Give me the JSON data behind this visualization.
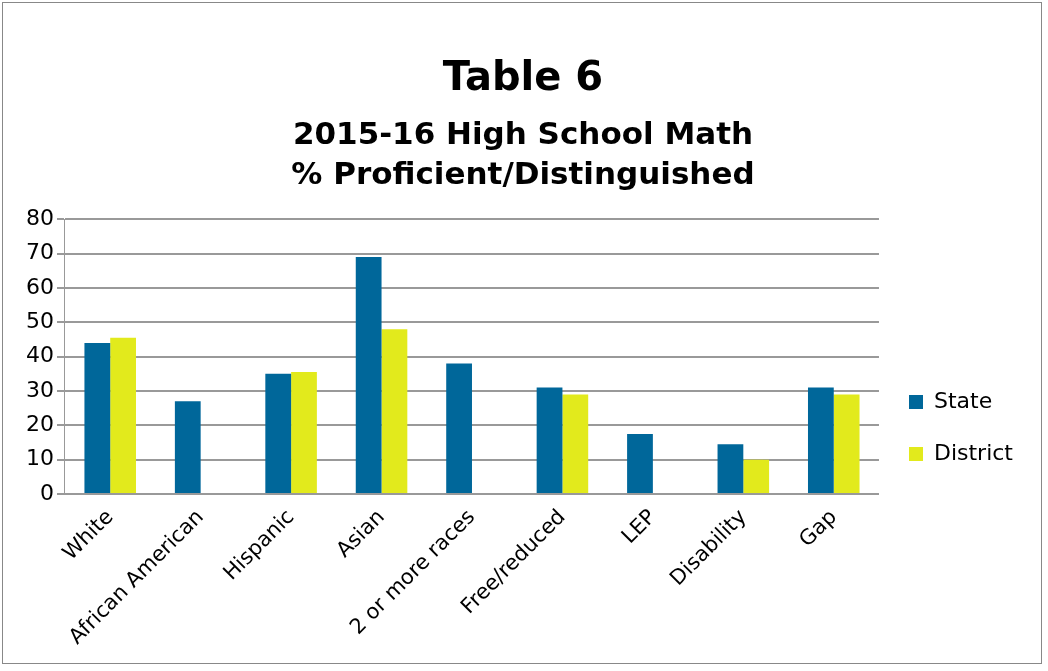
{
  "chart_data": {
    "type": "bar",
    "title": "Table 6",
    "subtitle": "2015-16 High School Math\n% Proficient/Distinguished",
    "categories": [
      "White",
      "African American",
      "Hispanic",
      "Asian",
      "2 or more races",
      "Free/reduced",
      "LEP",
      "Disability",
      "Gap"
    ],
    "series": [
      {
        "name": "State",
        "color": "#00679a",
        "values": [
          44,
          27,
          35,
          69,
          38,
          31,
          17.5,
          14.5,
          31
        ]
      },
      {
        "name": "District",
        "color": "#e2ea1c",
        "values": [
          45.5,
          null,
          35.5,
          48,
          null,
          29,
          null,
          10,
          29
        ]
      }
    ],
    "ylim": [
      0,
      80
    ],
    "yticks": [
      0,
      10,
      20,
      30,
      40,
      50,
      60,
      70,
      80
    ],
    "grid": "y",
    "legend": "right"
  }
}
